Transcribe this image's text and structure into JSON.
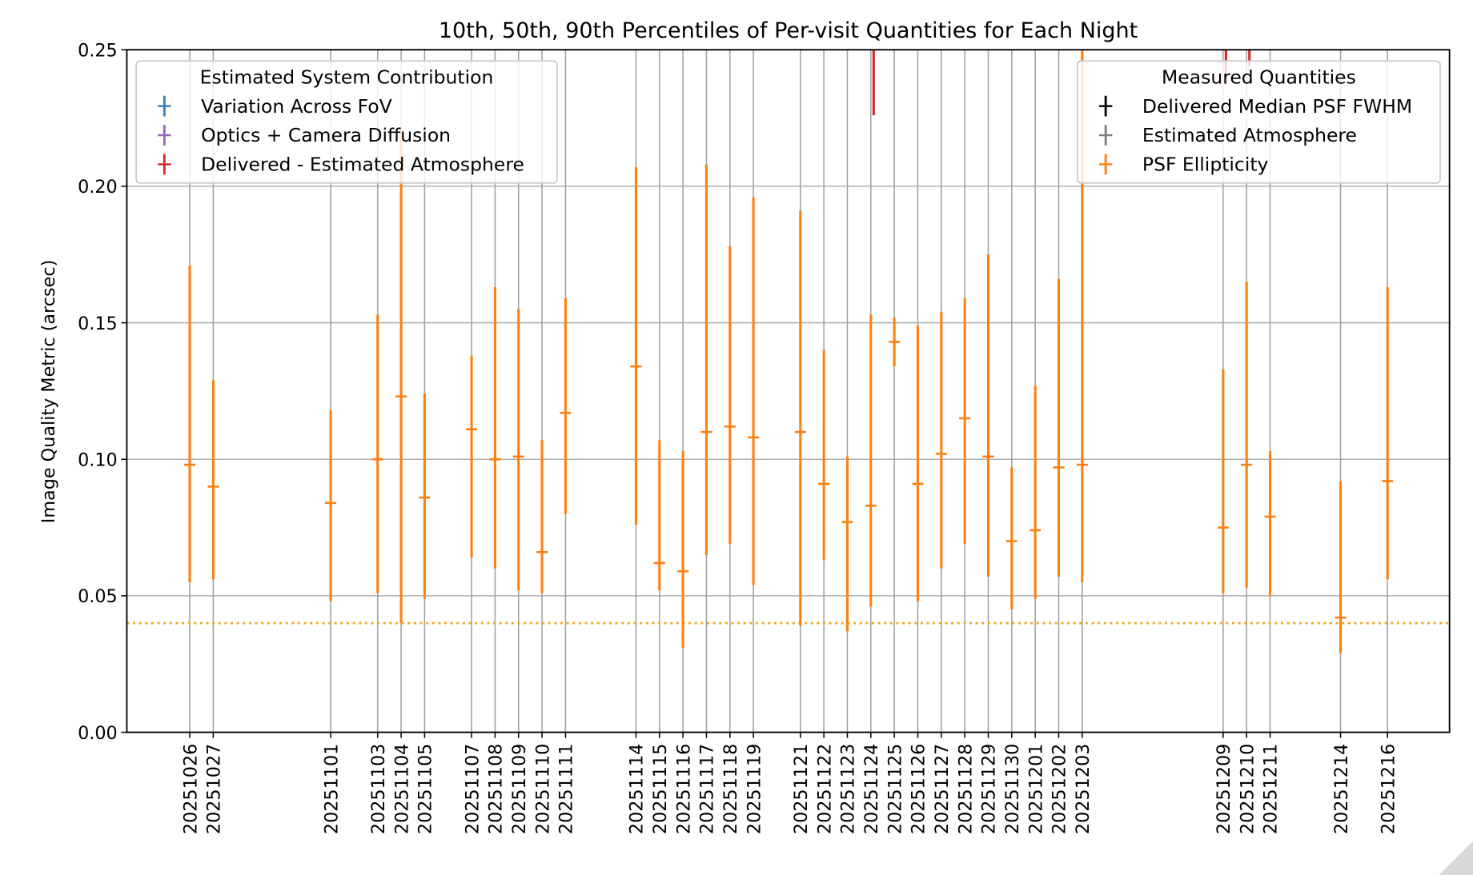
{
  "chart_data": {
    "type": "errorbar",
    "title": "10th, 50th, 90th Percentiles of Per-visit Quantities for Each Night",
    "xlabel": "",
    "ylabel": "Image Quality Metric (arcsec)",
    "ylim": [
      0,
      0.25
    ],
    "yticks": [
      "0.00",
      "0.05",
      "0.10",
      "0.15",
      "0.20",
      "0.25"
    ],
    "grid": true,
    "reference_line": {
      "y": 0.04,
      "style": "dotted",
      "color": "#f5a623"
    },
    "legends": [
      {
        "title": "Estimated System Contribution",
        "placement": "top-left",
        "entries": [
          {
            "label": "Variation Across FoV",
            "color": "#3a7dc0"
          },
          {
            "label": "Optics + Camera Diffusion",
            "color": "#9467bd"
          },
          {
            "label": "Delivered - Estimated Atmosphere",
            "color": "#d62728"
          }
        ]
      },
      {
        "title": "Measured Quantities",
        "placement": "top-right",
        "entries": [
          {
            "label": "Delivered Median PSF FWHM",
            "color": "#000000"
          },
          {
            "label": "Estimated Atmosphere",
            "color": "#7f7f7f"
          },
          {
            "label": "PSF Ellipticity",
            "color": "#ff7f0e"
          }
        ]
      }
    ],
    "series": [
      {
        "name": "PSF Ellipticity",
        "color": "#ff7f0e",
        "points": [
          {
            "date": "20251026",
            "p10": 0.055,
            "p50": 0.098,
            "p90": 0.171
          },
          {
            "date": "20251027",
            "p10": 0.056,
            "p50": 0.09,
            "p90": 0.129
          },
          {
            "date": "20251101",
            "p10": 0.048,
            "p50": 0.084,
            "p90": 0.118
          },
          {
            "date": "20251103",
            "p10": 0.051,
            "p50": 0.1,
            "p90": 0.153
          },
          {
            "date": "20251104",
            "p10": 0.04,
            "p50": 0.123,
            "p90": 0.22
          },
          {
            "date": "20251105",
            "p10": 0.049,
            "p50": 0.086,
            "p90": 0.124
          },
          {
            "date": "20251107",
            "p10": 0.064,
            "p50": 0.111,
            "p90": 0.138
          },
          {
            "date": "20251108",
            "p10": 0.06,
            "p50": 0.1,
            "p90": 0.163
          },
          {
            "date": "20251109",
            "p10": 0.052,
            "p50": 0.101,
            "p90": 0.155
          },
          {
            "date": "20251110",
            "p10": 0.051,
            "p50": 0.066,
            "p90": 0.107
          },
          {
            "date": "20251111",
            "p10": 0.08,
            "p50": 0.117,
            "p90": 0.159
          },
          {
            "date": "20251114",
            "p10": 0.076,
            "p50": 0.134,
            "p90": 0.207
          },
          {
            "date": "20251115",
            "p10": 0.052,
            "p50": 0.062,
            "p90": 0.107
          },
          {
            "date": "20251116",
            "p10": 0.031,
            "p50": 0.059,
            "p90": 0.103
          },
          {
            "date": "20251117",
            "p10": 0.065,
            "p50": 0.11,
            "p90": 0.208
          },
          {
            "date": "20251118",
            "p10": 0.069,
            "p50": 0.112,
            "p90": 0.178
          },
          {
            "date": "20251119",
            "p10": 0.054,
            "p50": 0.108,
            "p90": 0.196
          },
          {
            "date": "20251121",
            "p10": 0.039,
            "p50": 0.11,
            "p90": 0.191
          },
          {
            "date": "20251122",
            "p10": 0.063,
            "p50": 0.091,
            "p90": 0.14
          },
          {
            "date": "20251123",
            "p10": 0.037,
            "p50": 0.077,
            "p90": 0.101
          },
          {
            "date": "20251124",
            "p10": 0.046,
            "p50": 0.083,
            "p90": 0.153
          },
          {
            "date": "20251125",
            "p10": 0.134,
            "p50": 0.143,
            "p90": 0.152
          },
          {
            "date": "20251126",
            "p10": 0.048,
            "p50": 0.091,
            "p90": 0.149
          },
          {
            "date": "20251127",
            "p10": 0.06,
            "p50": 0.102,
            "p90": 0.154
          },
          {
            "date": "20251128",
            "p10": 0.069,
            "p50": 0.115,
            "p90": 0.159
          },
          {
            "date": "20251129",
            "p10": 0.057,
            "p50": 0.101,
            "p90": 0.175
          },
          {
            "date": "20251130",
            "p10": 0.045,
            "p50": 0.07,
            "p90": 0.097
          },
          {
            "date": "20251201",
            "p10": 0.049,
            "p50": 0.074,
            "p90": 0.127
          },
          {
            "date": "20251202",
            "p10": 0.057,
            "p50": 0.097,
            "p90": 0.166
          },
          {
            "date": "20251203",
            "p10": 0.055,
            "p50": 0.098,
            "p90": 0.26
          },
          {
            "date": "20251209",
            "p10": 0.051,
            "p50": 0.075,
            "p90": 0.133
          },
          {
            "date": "20251210",
            "p10": 0.053,
            "p50": 0.098,
            "p90": 0.165
          },
          {
            "date": "20251211",
            "p10": 0.05,
            "p50": 0.079,
            "p90": 0.103
          },
          {
            "date": "20251214",
            "p10": 0.029,
            "p50": 0.042,
            "p90": 0.092
          },
          {
            "date": "20251216",
            "p10": 0.056,
            "p50": 0.092,
            "p90": 0.163
          }
        ]
      },
      {
        "name": "Delivered - Estimated Atmosphere",
        "color": "#d62728",
        "points": [
          {
            "date": "20251124",
            "p10": 0.226,
            "p90": 0.3
          },
          {
            "date": "20251209",
            "p10": 0.237,
            "p90": 0.3
          },
          {
            "date": "20251210",
            "p10": 0.244,
            "p90": 0.3
          }
        ]
      }
    ]
  }
}
